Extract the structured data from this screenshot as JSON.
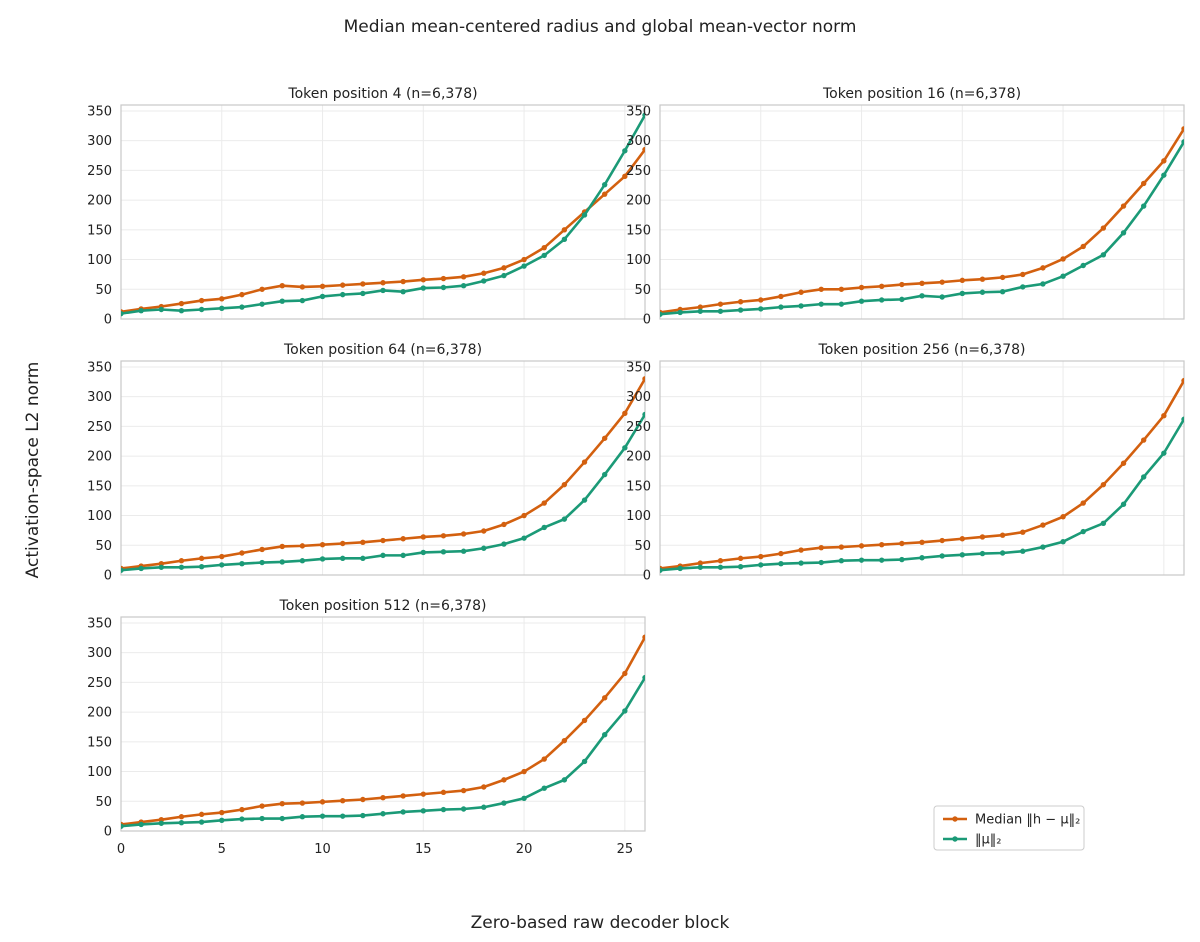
{
  "figure": {
    "title": "Median mean-centered radius and global mean-vector norm",
    "xlabel": "Zero-based raw decoder block",
    "ylabel": "Activation-space L2 norm"
  },
  "legend": {
    "placement": "lower-right",
    "entries": [
      {
        "label": "Median ‖h − μ‖₂",
        "color": "#d3600f"
      },
      {
        "label": "‖μ‖₂",
        "color": "#1b9a77"
      }
    ]
  },
  "chart_data": [
    {
      "type": "line",
      "title": "Token position 4 (n=6,378)",
      "x": [
        0,
        1,
        2,
        3,
        4,
        5,
        6,
        7,
        8,
        9,
        10,
        11,
        12,
        13,
        14,
        15,
        16,
        17,
        18,
        19,
        20,
        21,
        22,
        23,
        24,
        25,
        26
      ],
      "xlim": [
        0,
        26
      ],
      "ylim": [
        0,
        360
      ],
      "xticks": [
        0,
        5,
        10,
        15,
        20,
        25
      ],
      "yticks": [
        0,
        50,
        100,
        150,
        200,
        250,
        300,
        350
      ],
      "grid": true,
      "series": [
        {
          "name": "Median ‖h − μ‖₂",
          "color": "#d3600f",
          "values": [
            12,
            17,
            21,
            26,
            31,
            34,
            41,
            50,
            56,
            54,
            55,
            57,
            59,
            61,
            63,
            66,
            68,
            71,
            77,
            86,
            100,
            120,
            150,
            180,
            210,
            240,
            285
          ]
        },
        {
          "name": "‖μ‖₂",
          "color": "#1b9a77",
          "values": [
            9,
            14,
            16,
            14,
            16,
            18,
            20,
            25,
            30,
            31,
            38,
            41,
            43,
            48,
            46,
            52,
            53,
            56,
            64,
            73,
            89,
            107,
            134,
            175,
            226,
            283,
            343
          ]
        }
      ]
    },
    {
      "type": "line",
      "title": "Token position 16 (n=6,378)",
      "x": [
        0,
        1,
        2,
        3,
        4,
        5,
        6,
        7,
        8,
        9,
        10,
        11,
        12,
        13,
        14,
        15,
        16,
        17,
        18,
        19,
        20,
        21,
        22,
        23,
        24,
        25,
        26
      ],
      "xlim": [
        0,
        26
      ],
      "ylim": [
        0,
        360
      ],
      "xticks": [
        0,
        5,
        10,
        15,
        20,
        25
      ],
      "yticks": [
        0,
        50,
        100,
        150,
        200,
        250,
        300,
        350
      ],
      "grid": true,
      "series": [
        {
          "name": "Median ‖h − μ‖₂",
          "color": "#d3600f",
          "values": [
            11,
            16,
            20,
            25,
            29,
            32,
            38,
            45,
            50,
            50,
            53,
            55,
            58,
            60,
            62,
            65,
            67,
            70,
            75,
            86,
            101,
            122,
            153,
            190,
            228,
            266,
            320
          ]
        },
        {
          "name": "‖μ‖₂",
          "color": "#1b9a77",
          "values": [
            8,
            11,
            13,
            13,
            15,
            17,
            20,
            22,
            25,
            25,
            30,
            32,
            33,
            39,
            37,
            43,
            45,
            46,
            54,
            59,
            72,
            90,
            108,
            145,
            190,
            242,
            298
          ]
        }
      ]
    },
    {
      "type": "line",
      "title": "Token position 64 (n=6,378)",
      "x": [
        0,
        1,
        2,
        3,
        4,
        5,
        6,
        7,
        8,
        9,
        10,
        11,
        12,
        13,
        14,
        15,
        16,
        17,
        18,
        19,
        20,
        21,
        22,
        23,
        24,
        25,
        26
      ],
      "xlim": [
        0,
        26
      ],
      "ylim": [
        0,
        360
      ],
      "xticks": [
        0,
        5,
        10,
        15,
        20,
        25
      ],
      "yticks": [
        0,
        50,
        100,
        150,
        200,
        250,
        300,
        350
      ],
      "grid": true,
      "series": [
        {
          "name": "Median ‖h − μ‖₂",
          "color": "#d3600f",
          "values": [
            11,
            15,
            19,
            24,
            28,
            31,
            37,
            43,
            48,
            49,
            51,
            53,
            55,
            58,
            61,
            64,
            66,
            69,
            74,
            85,
            100,
            121,
            152,
            190,
            230,
            272,
            330
          ]
        },
        {
          "name": "‖μ‖₂",
          "color": "#1b9a77",
          "values": [
            8,
            11,
            13,
            13,
            14,
            17,
            19,
            21,
            22,
            24,
            27,
            28,
            28,
            33,
            33,
            38,
            39,
            40,
            45,
            52,
            62,
            80,
            94,
            126,
            169,
            214,
            270
          ]
        }
      ]
    },
    {
      "type": "line",
      "title": "Token position 256 (n=6,378)",
      "x": [
        0,
        1,
        2,
        3,
        4,
        5,
        6,
        7,
        8,
        9,
        10,
        11,
        12,
        13,
        14,
        15,
        16,
        17,
        18,
        19,
        20,
        21,
        22,
        23,
        24,
        25,
        26
      ],
      "xlim": [
        0,
        26
      ],
      "ylim": [
        0,
        360
      ],
      "xticks": [
        0,
        5,
        10,
        15,
        20,
        25
      ],
      "yticks": [
        0,
        50,
        100,
        150,
        200,
        250,
        300,
        350
      ],
      "grid": true,
      "series": [
        {
          "name": "Median ‖h − μ‖₂",
          "color": "#d3600f",
          "values": [
            11,
            15,
            20,
            24,
            28,
            31,
            36,
            42,
            46,
            47,
            49,
            51,
            53,
            55,
            58,
            61,
            64,
            67,
            72,
            84,
            98,
            121,
            152,
            188,
            227,
            268,
            327
          ]
        },
        {
          "name": "‖μ‖₂",
          "color": "#1b9a77",
          "values": [
            8,
            11,
            13,
            13,
            14,
            17,
            19,
            20,
            21,
            24,
            25,
            25,
            26,
            29,
            32,
            34,
            36,
            37,
            40,
            47,
            56,
            73,
            87,
            119,
            165,
            205,
            262
          ]
        }
      ]
    },
    {
      "type": "line",
      "title": "Token position 512 (n=6,378)",
      "x": [
        0,
        1,
        2,
        3,
        4,
        5,
        6,
        7,
        8,
        9,
        10,
        11,
        12,
        13,
        14,
        15,
        16,
        17,
        18,
        19,
        20,
        21,
        22,
        23,
        24,
        25,
        26
      ],
      "xlim": [
        0,
        26
      ],
      "ylim": [
        0,
        360
      ],
      "xticks": [
        0,
        5,
        10,
        15,
        20,
        25
      ],
      "yticks": [
        0,
        50,
        100,
        150,
        200,
        250,
        300,
        350
      ],
      "xticklabels_shown": true,
      "grid": true,
      "series": [
        {
          "name": "Median ‖h − μ‖₂",
          "color": "#d3600f",
          "values": [
            11,
            15,
            19,
            24,
            28,
            31,
            36,
            42,
            46,
            47,
            49,
            51,
            53,
            56,
            59,
            62,
            65,
            68,
            74,
            86,
            100,
            121,
            152,
            186,
            224,
            265,
            326
          ]
        },
        {
          "name": "‖μ‖₂",
          "color": "#1b9a77",
          "values": [
            8,
            11,
            13,
            14,
            15,
            18,
            20,
            21,
            21,
            24,
            25,
            25,
            26,
            29,
            32,
            34,
            36,
            37,
            40,
            47,
            55,
            72,
            86,
            117,
            162,
            202,
            258
          ]
        }
      ]
    }
  ]
}
